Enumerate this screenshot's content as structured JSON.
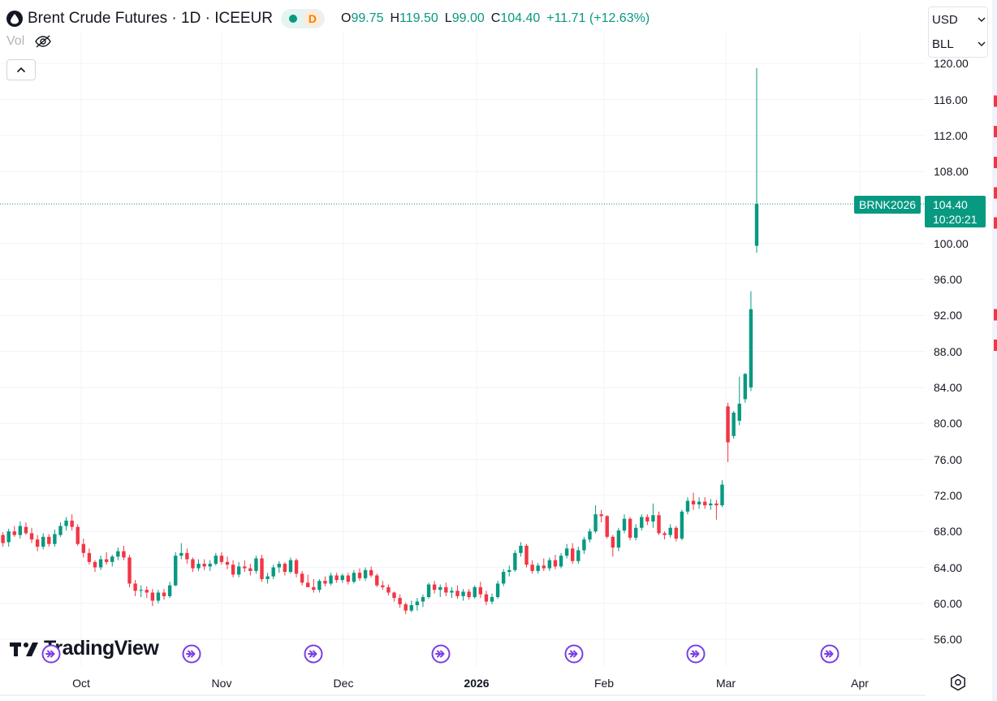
{
  "legend": {
    "symbol_title": "Brent Crude Futures · 1D · ICEEUR",
    "status_letter": "D",
    "open_label": "O",
    "open_value": "99.75",
    "high_label": "H",
    "high_value": "119.50",
    "low_label": "L",
    "low_value": "99.00",
    "close_label": "C",
    "close_value": "104.40",
    "change": "+11.71 (+12.63%)",
    "volume_label": "Vol"
  },
  "currency_select": "USD",
  "unit_select": "BLL",
  "symbol_tag": "BRNK2026",
  "last_price": "104.40",
  "countdown": "10:20:21",
  "watermark": "TradingView",
  "colors": {
    "up": "#089981",
    "down": "#F23645",
    "grid": "#F0F3FA",
    "accent_event": "#7B3FE4"
  },
  "icons": [
    "drop-icon",
    "eye-off-icon",
    "chevron-up-icon",
    "chevron-down-icon",
    "event-icon",
    "settings-icon"
  ],
  "chart_data": {
    "type": "candlestick",
    "title": "Brent Crude Futures",
    "interval": "1D",
    "exchange": "ICEEUR",
    "currency": "USD",
    "ylim": [
      54,
      121
    ],
    "y_ticks": [
      "120.00",
      "116.00",
      "112.00",
      "108.00",
      "100.00",
      "96.00",
      "92.00",
      "88.00",
      "84.00",
      "80.00",
      "76.00",
      "72.00",
      "68.00",
      "64.00",
      "60.00",
      "56.00"
    ],
    "x_ticks": [
      "Oct",
      "Nov",
      "Dec",
      "2026",
      "Feb",
      "Mar",
      "Apr"
    ],
    "last_price": 104.4,
    "candles": [
      [
        67.6,
        67.9,
        66.3,
        66.7
      ],
      [
        66.8,
        68.3,
        66.3,
        68.0
      ],
      [
        68.0,
        68.6,
        67.4,
        67.6
      ],
      [
        67.6,
        69.1,
        67.2,
        68.6
      ],
      [
        68.5,
        69.0,
        67.6,
        67.8
      ],
      [
        67.8,
        68.4,
        66.7,
        67.1
      ],
      [
        67.1,
        67.6,
        65.8,
        66.3
      ],
      [
        66.3,
        67.8,
        66.0,
        67.4
      ],
      [
        67.4,
        67.7,
        66.3,
        66.6
      ],
      [
        66.6,
        68.2,
        66.3,
        67.7
      ],
      [
        67.6,
        69.0,
        67.4,
        68.6
      ],
      [
        68.6,
        69.6,
        68.1,
        69.2
      ],
      [
        69.2,
        69.9,
        68.1,
        68.5
      ],
      [
        68.5,
        68.8,
        66.4,
        66.6
      ],
      [
        66.6,
        67.2,
        65.1,
        65.6
      ],
      [
        65.6,
        66.1,
        64.3,
        64.6
      ],
      [
        64.6,
        64.8,
        63.5,
        64.0
      ],
      [
        64.0,
        65.3,
        63.7,
        64.9
      ],
      [
        64.9,
        65.7,
        64.3,
        64.6
      ],
      [
        64.6,
        65.4,
        64.1,
        65.2
      ],
      [
        65.2,
        66.2,
        64.8,
        65.8
      ],
      [
        65.8,
        66.4,
        64.8,
        65.1
      ],
      [
        65.1,
        65.4,
        61.8,
        62.2
      ],
      [
        62.2,
        62.6,
        60.8,
        61.4
      ],
      [
        61.4,
        62.0,
        60.7,
        61.5
      ],
      [
        61.5,
        61.9,
        60.6,
        61.2
      ],
      [
        61.2,
        61.6,
        59.7,
        60.3
      ],
      [
        60.3,
        61.5,
        60.0,
        61.2
      ],
      [
        61.2,
        61.6,
        60.4,
        60.8
      ],
      [
        60.8,
        62.4,
        60.6,
        62.0
      ],
      [
        62.0,
        65.7,
        61.9,
        65.3
      ],
      [
        65.3,
        66.7,
        64.9,
        65.6
      ],
      [
        65.6,
        66.1,
        64.4,
        64.9
      ],
      [
        64.9,
        65.1,
        63.5,
        63.9
      ],
      [
        63.9,
        64.9,
        63.6,
        64.4
      ],
      [
        64.4,
        64.9,
        63.7,
        64.1
      ],
      [
        64.1,
        64.8,
        63.6,
        64.4
      ],
      [
        64.4,
        65.6,
        64.2,
        65.3
      ],
      [
        65.3,
        65.7,
        64.3,
        64.6
      ],
      [
        64.6,
        65.2,
        63.8,
        64.3
      ],
      [
        64.3,
        64.8,
        62.9,
        63.2
      ],
      [
        63.2,
        64.6,
        62.9,
        64.1
      ],
      [
        64.1,
        64.8,
        63.5,
        63.9
      ],
      [
        63.9,
        64.4,
        63.1,
        63.6
      ],
      [
        63.6,
        65.3,
        63.3,
        65.0
      ],
      [
        65.0,
        65.4,
        62.4,
        62.7
      ],
      [
        62.7,
        63.4,
        62.2,
        63.0
      ],
      [
        63.0,
        64.3,
        62.7,
        64.0
      ],
      [
        64.0,
        64.7,
        63.4,
        64.4
      ],
      [
        64.4,
        64.6,
        63.1,
        63.5
      ],
      [
        63.5,
        65.1,
        63.3,
        64.8
      ],
      [
        64.8,
        65.0,
        62.9,
        63.3
      ],
      [
        63.3,
        63.6,
        62.0,
        62.3
      ],
      [
        62.3,
        63.2,
        61.8,
        61.8
      ],
      [
        61.8,
        62.7,
        61.2,
        61.5
      ],
      [
        61.5,
        62.7,
        61.2,
        62.5
      ],
      [
        62.5,
        63.0,
        61.9,
        62.2
      ],
      [
        62.2,
        63.4,
        62.0,
        63.1
      ],
      [
        63.1,
        63.4,
        62.3,
        62.6
      ],
      [
        62.6,
        63.3,
        62.3,
        63.1
      ],
      [
        63.1,
        63.4,
        62.1,
        62.4
      ],
      [
        62.4,
        63.7,
        62.2,
        63.4
      ],
      [
        63.4,
        63.9,
        62.5,
        62.8
      ],
      [
        62.8,
        64.0,
        62.5,
        63.7
      ],
      [
        63.7,
        64.1,
        62.9,
        63.1
      ],
      [
        63.1,
        63.3,
        61.8,
        62.0
      ],
      [
        62.0,
        62.5,
        61.5,
        61.8
      ],
      [
        61.8,
        62.1,
        60.9,
        61.2
      ],
      [
        61.2,
        61.3,
        60.2,
        60.6
      ],
      [
        60.6,
        61.0,
        59.5,
        59.9
      ],
      [
        59.9,
        60.1,
        58.8,
        59.2
      ],
      [
        59.2,
        60.3,
        59.0,
        59.8
      ],
      [
        59.8,
        60.6,
        59.2,
        60.2
      ],
      [
        60.2,
        61.0,
        59.6,
        60.7
      ],
      [
        60.7,
        62.3,
        60.5,
        62.1
      ],
      [
        62.1,
        62.5,
        61.1,
        61.5
      ],
      [
        61.5,
        62.1,
        60.7,
        61.8
      ],
      [
        61.8,
        62.3,
        60.8,
        61.2
      ],
      [
        61.2,
        61.8,
        60.6,
        61.4
      ],
      [
        61.4,
        62.0,
        60.5,
        60.8
      ],
      [
        60.8,
        61.6,
        60.3,
        61.3
      ],
      [
        61.3,
        61.6,
        60.4,
        60.7
      ],
      [
        60.7,
        62.0,
        60.5,
        61.8
      ],
      [
        61.8,
        62.4,
        60.6,
        61.0
      ],
      [
        61.0,
        61.4,
        59.8,
        60.2
      ],
      [
        60.2,
        61.1,
        59.9,
        60.7
      ],
      [
        60.7,
        62.5,
        60.5,
        62.2
      ],
      [
        62.2,
        63.8,
        61.9,
        63.5
      ],
      [
        63.5,
        64.2,
        63.0,
        63.7
      ],
      [
        63.7,
        65.9,
        63.5,
        65.6
      ],
      [
        65.6,
        66.8,
        65.2,
        66.4
      ],
      [
        66.4,
        66.6,
        64.0,
        64.3
      ],
      [
        64.3,
        64.8,
        63.3,
        63.6
      ],
      [
        63.6,
        64.5,
        63.3,
        64.2
      ],
      [
        64.2,
        65.0,
        63.6,
        63.9
      ],
      [
        63.9,
        65.1,
        63.6,
        64.8
      ],
      [
        64.8,
        65.4,
        63.8,
        64.1
      ],
      [
        64.1,
        65.6,
        63.9,
        65.3
      ],
      [
        65.3,
        66.6,
        65.0,
        66.1
      ],
      [
        66.1,
        66.7,
        64.4,
        64.7
      ],
      [
        64.7,
        66.3,
        64.4,
        65.9
      ],
      [
        65.9,
        67.4,
        65.5,
        67.1
      ],
      [
        67.1,
        68.3,
        66.8,
        68.0
      ],
      [
        68.0,
        70.9,
        67.8,
        69.9
      ],
      [
        69.9,
        70.4,
        69.0,
        69.7
      ],
      [
        69.7,
        69.8,
        67.2,
        67.4
      ],
      [
        67.4,
        67.6,
        65.2,
        66.2
      ],
      [
        66.2,
        68.4,
        65.8,
        68.1
      ],
      [
        68.1,
        69.9,
        67.8,
        69.4
      ],
      [
        69.4,
        69.6,
        67.0,
        67.3
      ],
      [
        67.3,
        68.8,
        67.0,
        68.4
      ],
      [
        68.4,
        69.9,
        68.1,
        69.6
      ],
      [
        69.6,
        69.9,
        68.7,
        69.1
      ],
      [
        69.1,
        71.1,
        68.4,
        69.8
      ],
      [
        69.8,
        70.2,
        67.6,
        67.8
      ],
      [
        67.8,
        68.0,
        67.1,
        67.6
      ],
      [
        67.6,
        68.8,
        67.3,
        68.4
      ],
      [
        68.4,
        68.6,
        66.9,
        67.2
      ],
      [
        67.2,
        70.4,
        67.0,
        70.2
      ],
      [
        70.2,
        71.8,
        69.9,
        71.4
      ],
      [
        71.4,
        72.3,
        70.4,
        71.0
      ],
      [
        71.0,
        71.8,
        70.5,
        71.3
      ],
      [
        71.3,
        71.8,
        70.5,
        70.9
      ],
      [
        70.9,
        71.6,
        70.4,
        71.1
      ],
      [
        71.1,
        71.5,
        69.3,
        70.9
      ],
      [
        70.9,
        73.7,
        70.7,
        73.2
      ],
      [
        81.9,
        82.3,
        75.7,
        77.9
      ],
      [
        78.6,
        81.4,
        78.3,
        81.2
      ],
      [
        80.3,
        85.2,
        79.8,
        82.2
      ],
      [
        82.7,
        85.6,
        82.3,
        85.5
      ],
      [
        84.0,
        94.7,
        83.6,
        92.7
      ],
      [
        99.75,
        119.5,
        99.0,
        104.4
      ]
    ]
  }
}
